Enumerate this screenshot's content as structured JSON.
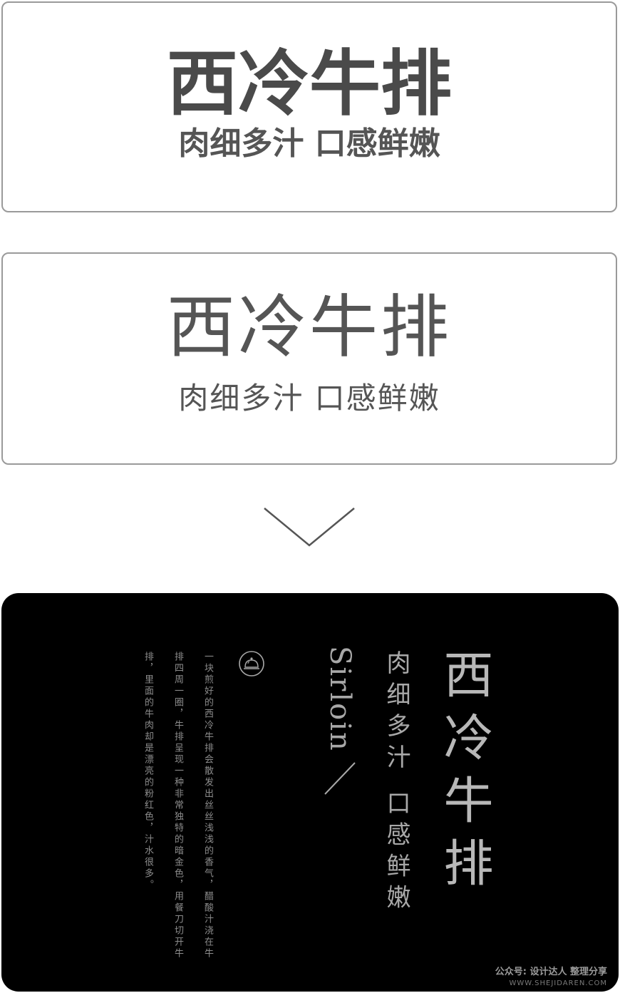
{
  "card1": {
    "title": "西冷牛排",
    "subtitle": "肉细多汁 口感鲜嫩"
  },
  "card2": {
    "title": "西冷牛排",
    "subtitle": "肉细多汁 口感鲜嫩"
  },
  "arrow_icon": "chevron-down-icon",
  "dark_card": {
    "title": "西冷牛排",
    "subtitle": "肉细多汁 口感鲜嫩",
    "english": "Sirloin",
    "icon": "cloche-icon",
    "description_lines": [
      "一块煎好的西冷牛排会散发出丝丝浅浅的香气，醋酸汁浇在牛",
      "排四周一圈，牛排呈现一种非常独特的暗金色，用餐刀切开牛",
      "排，里面的牛肉却是漂亮的粉红色，汁水很多。"
    ]
  },
  "watermark": {
    "line1": "公众号: 设计达人 整理分享",
    "line2": "WWW.SHEJIDAREN.COM"
  },
  "colors": {
    "title_gray": "#4a4a4a",
    "border_gray": "#9a9a9a",
    "dark_bg": "#000000",
    "dark_text": "#b8b8b8"
  }
}
